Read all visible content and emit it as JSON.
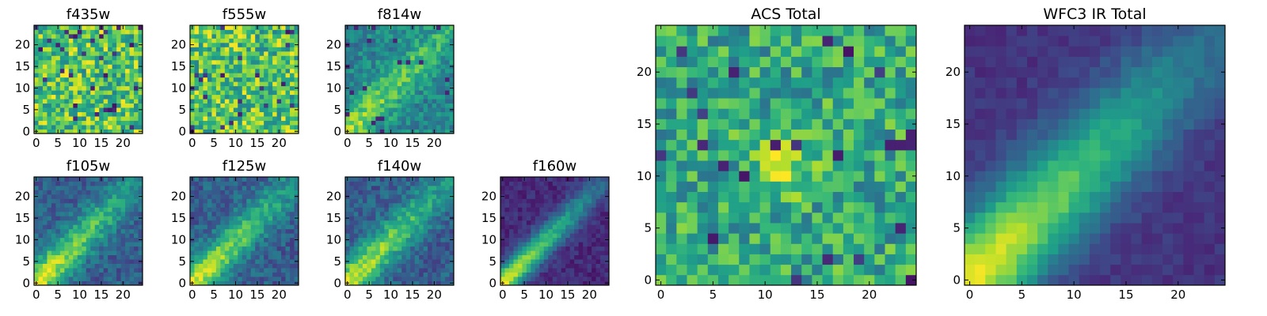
{
  "chart_data": [
    {
      "type": "heatmap",
      "title": "f435w",
      "pattern": "noise",
      "x_ticks": [
        0,
        5,
        10,
        15,
        20
      ],
      "y_ticks": [
        0,
        5,
        10,
        15,
        20
      ],
      "xlim": [
        0,
        25
      ],
      "ylim": [
        0,
        25
      ],
      "grid_size": 25,
      "colormap": "viridis"
    },
    {
      "type": "heatmap",
      "title": "f555w",
      "pattern": "noise",
      "x_ticks": [
        0,
        5,
        10,
        15,
        20
      ],
      "y_ticks": [
        0,
        5,
        10,
        15,
        20
      ],
      "xlim": [
        0,
        25
      ],
      "ylim": [
        0,
        25
      ],
      "grid_size": 25,
      "colormap": "viridis"
    },
    {
      "type": "heatmap",
      "title": "f814w",
      "pattern": "faint-diagonal",
      "x_ticks": [
        0,
        5,
        10,
        15,
        20
      ],
      "y_ticks": [
        0,
        5,
        10,
        15,
        20
      ],
      "xlim": [
        0,
        25
      ],
      "ylim": [
        0,
        25
      ],
      "grid_size": 25,
      "colormap": "viridis"
    },
    {
      "type": "heatmap",
      "title": "f105w",
      "pattern": "diagonal",
      "x_ticks": [
        0,
        5,
        10,
        15,
        20
      ],
      "y_ticks": [
        0,
        5,
        10,
        15,
        20
      ],
      "xlim": [
        0,
        25
      ],
      "ylim": [
        0,
        25
      ],
      "grid_size": 25,
      "colormap": "viridis"
    },
    {
      "type": "heatmap",
      "title": "f125w",
      "pattern": "diagonal",
      "x_ticks": [
        0,
        5,
        10,
        15,
        20
      ],
      "y_ticks": [
        0,
        5,
        10,
        15,
        20
      ],
      "xlim": [
        0,
        25
      ],
      "ylim": [
        0,
        25
      ],
      "grid_size": 25,
      "colormap": "viridis"
    },
    {
      "type": "heatmap",
      "title": "f140w",
      "pattern": "diagonal",
      "x_ticks": [
        0,
        5,
        10,
        15,
        20
      ],
      "y_ticks": [
        0,
        5,
        10,
        15,
        20
      ],
      "xlim": [
        0,
        25
      ],
      "ylim": [
        0,
        25
      ],
      "grid_size": 25,
      "colormap": "viridis"
    },
    {
      "type": "heatmap",
      "title": "f160w",
      "pattern": "sharp-diagonal",
      "x_ticks": [
        0,
        5,
        10,
        15,
        20
      ],
      "y_ticks": [
        0,
        5,
        10,
        15,
        20
      ],
      "xlim": [
        0,
        25
      ],
      "ylim": [
        0,
        25
      ],
      "grid_size": 25,
      "colormap": "viridis"
    },
    {
      "type": "heatmap",
      "title": "ACS Total",
      "pattern": "noise-with-center-blob",
      "x_ticks": [
        0,
        5,
        10,
        15,
        20
      ],
      "y_ticks": [
        0,
        5,
        10,
        15,
        20
      ],
      "xlim": [
        0,
        25
      ],
      "ylim": [
        0,
        25
      ],
      "grid_size": 25,
      "colormap": "viridis"
    },
    {
      "type": "heatmap",
      "title": "WFC3 IR Total",
      "pattern": "smooth-diagonal",
      "x_ticks": [
        0,
        5,
        10,
        15,
        20
      ],
      "y_ticks": [
        0,
        5,
        10,
        15,
        20
      ],
      "xlim": [
        0,
        25
      ],
      "ylim": [
        0,
        25
      ],
      "grid_size": 25,
      "colormap": "viridis"
    }
  ],
  "colors": {
    "viridis_stops": [
      "#440154",
      "#482878",
      "#3e4989",
      "#31688e",
      "#26828e",
      "#1f9e89",
      "#35b779",
      "#6ece58",
      "#b5de2b",
      "#fde725"
    ],
    "axes": "#000000",
    "background": "#ffffff"
  }
}
